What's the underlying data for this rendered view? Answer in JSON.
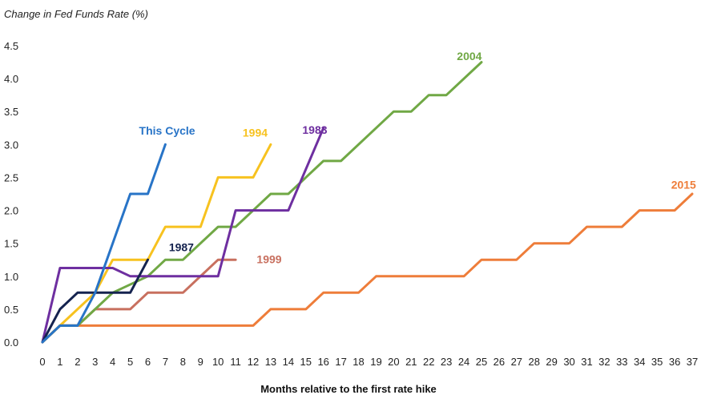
{
  "chart_data": {
    "type": "line",
    "title": "",
    "ylabel": "Change in Fed Funds Rate (%)",
    "xlabel": "Months relative to the first rate hike",
    "xlim": [
      0,
      37
    ],
    "ylim": [
      0,
      4.5
    ],
    "yticks": [
      "0.0",
      "0.5",
      "1.0",
      "1.5",
      "2.0",
      "2.5",
      "3.0",
      "3.5",
      "4.0",
      "4.5"
    ],
    "xticks": [
      "0",
      "1",
      "2",
      "3",
      "4",
      "5",
      "6",
      "7",
      "8",
      "9",
      "10",
      "11",
      "12",
      "13",
      "14",
      "15",
      "16",
      "17",
      "18",
      "19",
      "20",
      "21",
      "22",
      "23",
      "24",
      "25",
      "26",
      "27",
      "28",
      "29",
      "30",
      "31",
      "32",
      "33",
      "34",
      "35",
      "36",
      "37"
    ],
    "grid": false,
    "series": [
      {
        "name": "2015",
        "color": "#EE7D3A",
        "points": [
          [
            0,
            0
          ],
          [
            1,
            0.25
          ],
          [
            12,
            0.25
          ],
          [
            13,
            0.5
          ],
          [
            15,
            0.5
          ],
          [
            16,
            0.75
          ],
          [
            18,
            0.75
          ],
          [
            19,
            1.0
          ],
          [
            24,
            1.0
          ],
          [
            25,
            1.25
          ],
          [
            27,
            1.25
          ],
          [
            28,
            1.5
          ],
          [
            30,
            1.5
          ],
          [
            31,
            1.75
          ],
          [
            33,
            1.75
          ],
          [
            34,
            2.0
          ],
          [
            36,
            2.0
          ],
          [
            37,
            2.25
          ]
        ]
      },
      {
        "name": "1999",
        "color": "#C8705F",
        "points": [
          [
            0,
            0
          ],
          [
            1,
            0.25
          ],
          [
            2,
            0.25
          ],
          [
            3,
            0.5
          ],
          [
            5,
            0.5
          ],
          [
            6,
            0.75
          ],
          [
            8,
            0.75
          ],
          [
            10,
            1.25
          ],
          [
            11,
            1.25
          ]
        ]
      },
      {
        "name": "2004",
        "color": "#70A845",
        "points": [
          [
            0,
            0
          ],
          [
            1,
            0.25
          ],
          [
            2,
            0.25
          ],
          [
            3,
            0.5
          ],
          [
            4,
            0.75
          ],
          [
            6,
            1.0
          ],
          [
            7,
            1.25
          ],
          [
            8,
            1.25
          ],
          [
            10,
            1.75
          ],
          [
            11,
            1.75
          ],
          [
            13,
            2.25
          ],
          [
            14,
            2.25
          ],
          [
            16,
            2.75
          ],
          [
            17,
            2.75
          ],
          [
            20,
            3.5
          ],
          [
            21,
            3.5
          ],
          [
            22,
            3.75
          ],
          [
            23,
            3.75
          ],
          [
            25,
            4.25
          ]
        ]
      },
      {
        "name": "1994",
        "color": "#F7C21F",
        "points": [
          [
            0,
            0
          ],
          [
            1,
            0.25
          ],
          [
            3,
            0.75
          ],
          [
            4,
            1.25
          ],
          [
            6,
            1.25
          ],
          [
            7,
            1.75
          ],
          [
            9,
            1.75
          ],
          [
            10,
            2.5
          ],
          [
            12,
            2.5
          ],
          [
            13,
            3.0
          ]
        ]
      },
      {
        "name": "1983",
        "color": "#6E2FA0",
        "points": [
          [
            0,
            0
          ],
          [
            1,
            1.125
          ],
          [
            4,
            1.125
          ],
          [
            5,
            1.0
          ],
          [
            10,
            1.0
          ],
          [
            11,
            2.0
          ],
          [
            14,
            2.0
          ],
          [
            16,
            3.25
          ]
        ]
      },
      {
        "name": "1987",
        "color": "#15234F",
        "points": [
          [
            0,
            0
          ],
          [
            1,
            0.5
          ],
          [
            2,
            0.75
          ],
          [
            5,
            0.75
          ],
          [
            6,
            1.25
          ]
        ]
      },
      {
        "name": "This Cycle",
        "color": "#2874C7",
        "points": [
          [
            0,
            0
          ],
          [
            1,
            0.25
          ],
          [
            2,
            0.25
          ],
          [
            3,
            0.75
          ],
          [
            5,
            2.25
          ],
          [
            6,
            2.25
          ],
          [
            7,
            3.0
          ]
        ]
      }
    ],
    "series_labels": [
      {
        "text": "This Cycle",
        "color": "#2874C7",
        "at": [
          5.5,
          3.15
        ]
      },
      {
        "text": "1994",
        "color": "#F7C21F",
        "at": [
          11.4,
          3.12
        ]
      },
      {
        "text": "1983",
        "color": "#6E2FA0",
        "at": [
          14.8,
          3.16
        ]
      },
      {
        "text": "1987",
        "color": "#15234F",
        "at": [
          7.2,
          1.38
        ]
      },
      {
        "text": "1999",
        "color": "#C8705F",
        "at": [
          12.2,
          1.2
        ]
      },
      {
        "text": "2004",
        "color": "#70A845",
        "at": [
          23.6,
          4.28
        ]
      },
      {
        "text": "2015",
        "color": "#EE7D3A",
        "at": [
          35.8,
          2.33
        ]
      }
    ]
  }
}
